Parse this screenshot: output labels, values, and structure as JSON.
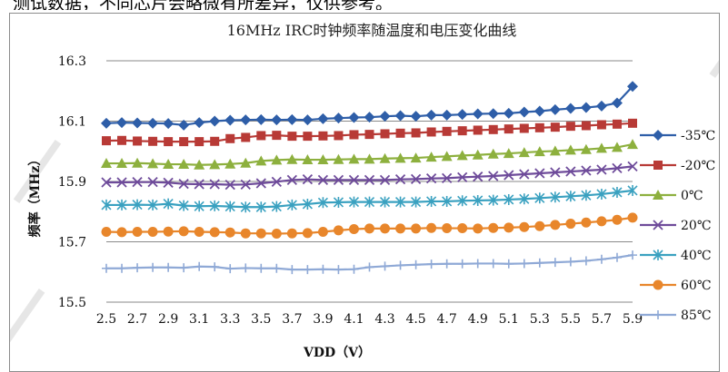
{
  "page_fragment": "测试数据，不同芯片会略微有所差异，仅供参考。",
  "chart_data": {
    "type": "line",
    "title": "16MHz IRC时钟频率随温度和电压变化曲线",
    "xlabel": "VDD（V）",
    "ylabel": "频率（MHz）",
    "x": [
      2.5,
      2.6,
      2.7,
      2.8,
      2.9,
      3.0,
      3.1,
      3.2,
      3.3,
      3.4,
      3.5,
      3.6,
      3.7,
      3.8,
      3.9,
      4.0,
      4.1,
      4.2,
      4.3,
      4.4,
      4.5,
      4.6,
      4.7,
      4.8,
      4.9,
      5.0,
      5.1,
      5.2,
      5.3,
      5.4,
      5.5,
      5.6,
      5.7,
      5.8,
      5.9
    ],
    "xticks": [
      "2.5",
      "2.7",
      "2.9",
      "3.1",
      "3.3",
      "3.5",
      "3.7",
      "3.9",
      "4.1",
      "4.3",
      "4.5",
      "4.7",
      "4.9",
      "5.1",
      "5.3",
      "5.5",
      "5.7",
      "5.9"
    ],
    "ylim": [
      15.5,
      16.3
    ],
    "yticks": [
      "15.5",
      "15.7",
      "15.9",
      "16.1",
      "16.3"
    ],
    "grid": true,
    "legend_position": "right",
    "series": [
      {
        "name": "-35℃",
        "color": "#2e5ea8",
        "marker": "diamond",
        "values": [
          16.093,
          16.095,
          16.094,
          16.093,
          16.092,
          16.087,
          16.095,
          16.1,
          16.103,
          16.104,
          16.105,
          16.104,
          16.105,
          16.104,
          16.108,
          16.11,
          16.112,
          16.113,
          16.116,
          16.118,
          16.116,
          16.12,
          16.12,
          16.122,
          16.124,
          16.125,
          16.126,
          16.13,
          16.133,
          16.138,
          16.142,
          16.145,
          16.15,
          16.16,
          16.215
        ]
      },
      {
        "name": "-20℃",
        "color": "#b83a36",
        "marker": "square",
        "values": [
          16.035,
          16.036,
          16.034,
          16.033,
          16.032,
          16.032,
          16.032,
          16.033,
          16.042,
          16.046,
          16.052,
          16.053,
          16.05,
          16.05,
          16.051,
          16.052,
          16.055,
          16.056,
          16.058,
          16.06,
          16.061,
          16.064,
          16.066,
          16.068,
          16.07,
          16.072,
          16.074,
          16.076,
          16.078,
          16.08,
          16.083,
          16.085,
          16.088,
          16.09,
          16.093
        ]
      },
      {
        "name": "0℃",
        "color": "#8db03e",
        "marker": "triangle",
        "values": [
          15.96,
          15.96,
          15.961,
          15.959,
          15.957,
          15.957,
          15.955,
          15.956,
          15.958,
          15.961,
          15.968,
          15.971,
          15.973,
          15.972,
          15.972,
          15.973,
          15.974,
          15.974,
          15.976,
          15.977,
          15.978,
          15.981,
          15.983,
          15.986,
          15.988,
          15.991,
          15.993,
          15.996,
          15.999,
          16.001,
          16.004,
          16.006,
          16.01,
          16.013,
          16.023
        ]
      },
      {
        "name": "20℃",
        "color": "#6e4b9a",
        "marker": "x",
        "values": [
          15.897,
          15.897,
          15.898,
          15.898,
          15.896,
          15.892,
          15.891,
          15.891,
          15.889,
          15.89,
          15.894,
          15.899,
          15.905,
          15.907,
          15.905,
          15.905,
          15.905,
          15.905,
          15.905,
          15.907,
          15.908,
          15.91,
          15.911,
          15.914,
          15.916,
          15.918,
          15.921,
          15.924,
          15.927,
          15.93,
          15.933,
          15.936,
          15.939,
          15.944,
          15.95
        ]
      },
      {
        "name": "40℃",
        "color": "#3aa1c0",
        "marker": "star",
        "values": [
          15.822,
          15.822,
          15.823,
          15.822,
          15.826,
          15.82,
          15.818,
          15.819,
          15.817,
          15.815,
          15.815,
          15.817,
          15.822,
          15.825,
          15.83,
          15.831,
          15.832,
          15.832,
          15.832,
          15.832,
          15.832,
          15.834,
          15.834,
          15.836,
          15.837,
          15.838,
          15.84,
          15.842,
          15.845,
          15.848,
          15.851,
          15.854,
          15.858,
          15.864,
          15.87
        ]
      },
      {
        "name": "60℃",
        "color": "#e8862b",
        "marker": "circle",
        "values": [
          15.733,
          15.732,
          15.733,
          15.733,
          15.734,
          15.735,
          15.733,
          15.732,
          15.731,
          15.728,
          15.728,
          15.727,
          15.728,
          15.729,
          15.733,
          15.738,
          15.742,
          15.744,
          15.744,
          15.744,
          15.744,
          15.746,
          15.745,
          15.745,
          15.744,
          15.746,
          15.747,
          15.749,
          15.752,
          15.756,
          15.76,
          15.764,
          15.768,
          15.773,
          15.78
        ]
      },
      {
        "name": "85℃",
        "color": "#8fa9d6",
        "marker": "plus",
        "values": [
          15.612,
          15.612,
          15.614,
          15.615,
          15.615,
          15.614,
          15.618,
          15.617,
          15.611,
          15.613,
          15.612,
          15.612,
          15.608,
          15.608,
          15.609,
          15.608,
          15.609,
          15.616,
          15.619,
          15.622,
          15.624,
          15.626,
          15.627,
          15.627,
          15.628,
          15.628,
          15.627,
          15.628,
          15.63,
          15.632,
          15.634,
          15.637,
          15.642,
          15.648,
          15.656
        ]
      }
    ]
  }
}
